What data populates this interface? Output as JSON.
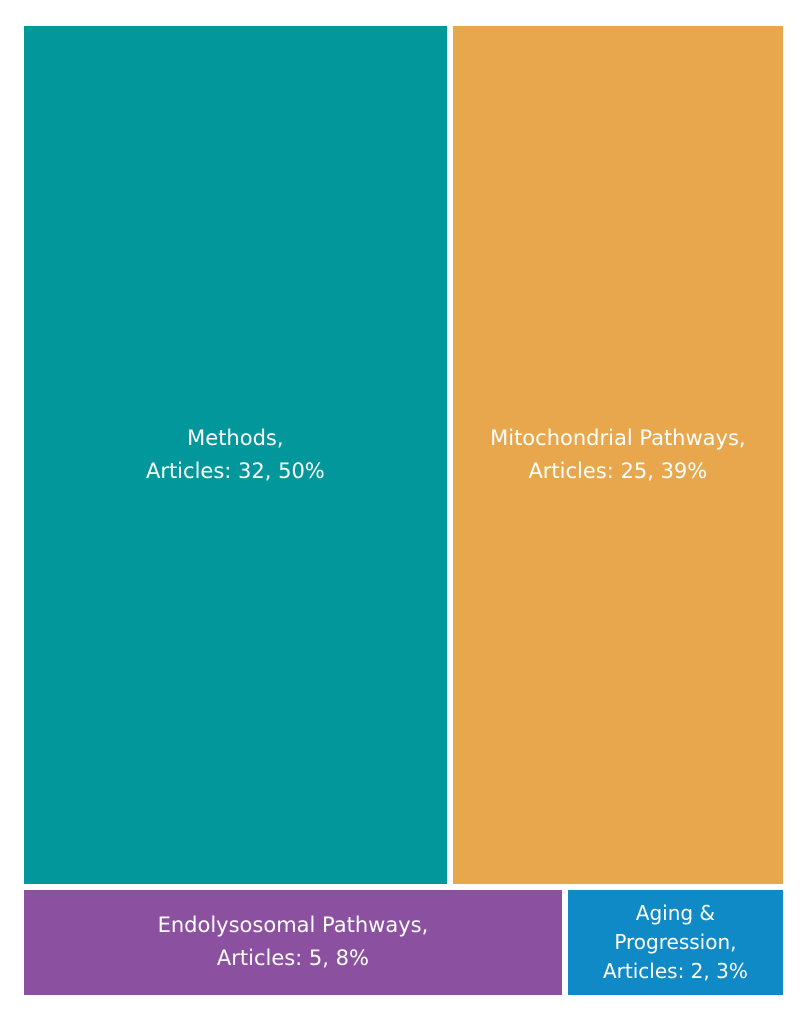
{
  "chart_data": {
    "type": "treemap",
    "title": "",
    "unit": "Articles",
    "items": [
      {
        "name": "Methods",
        "value": 32,
        "percent": "50%",
        "color": "#02979b",
        "label_lines": [
          "Methods,",
          "Articles: 32, 50%"
        ]
      },
      {
        "name": "Mitochondrial Pathways",
        "value": 25,
        "percent": "39%",
        "color": "#e8a74d",
        "label_lines": [
          "Mitochondrial Pathways,",
          "Articles: 25, 39%"
        ]
      },
      {
        "name": "Endolysosomal Pathways",
        "value": 5,
        "percent": "8%",
        "color": "#8b50a0",
        "label_lines": [
          "Endolysosomal Pathways,",
          "Articles: 5, 8%"
        ]
      },
      {
        "name": "Aging & Progression",
        "value": 2,
        "percent": "3%",
        "color": "#0f8ac6",
        "label_lines": [
          "Aging &",
          "Progression,",
          "Articles: 2, 3%"
        ]
      }
    ]
  }
}
